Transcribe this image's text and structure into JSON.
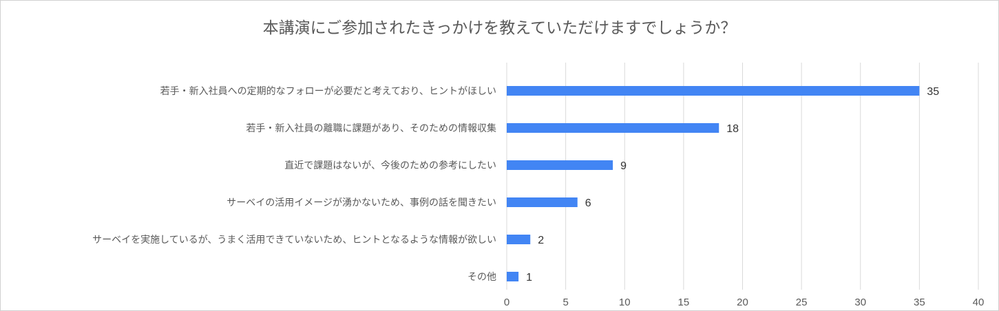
{
  "chart_data": {
    "type": "bar",
    "orientation": "horizontal",
    "title": "本講演にご参加されたきっかけを教えていただけますでしょうか？",
    "categories": [
      "若手・新入社員への定期的なフォローが必要だと考えており、ヒントがほしい",
      "若手・新入社員の離職に課題があり、そのための情報収集",
      "直近で課題はないが、今後のための参考にしたい",
      "サーベイの活用イメージが湧かないため、事例の話を聞きたい",
      "サーベイを実施しているが、うまく活用できていないため、ヒントとなるような情報が欲しい",
      "その他"
    ],
    "values": [
      35,
      18,
      9,
      6,
      2,
      1
    ],
    "xlim": [
      0,
      40
    ],
    "xticks": [
      0,
      5,
      10,
      15,
      20,
      25,
      30,
      35,
      40
    ],
    "grid": true,
    "bar_color": "#4285f4",
    "xlabel": "",
    "ylabel": ""
  }
}
